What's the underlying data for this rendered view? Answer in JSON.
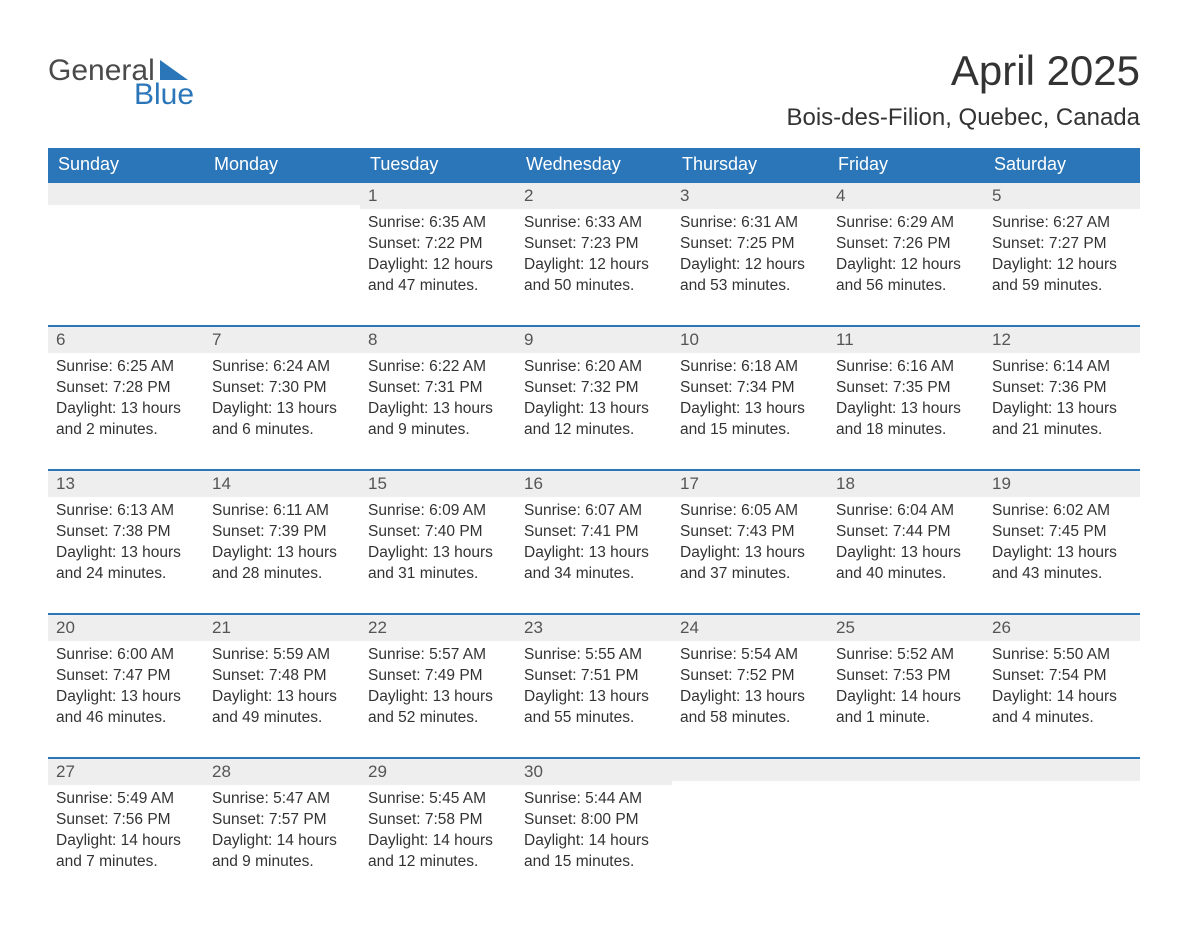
{
  "brand": {
    "text_general": "General",
    "text_blue": "Blue",
    "color_general": "#4a4a4a",
    "color_blue": "#2b76b8",
    "triangle_color": "#2b76b8"
  },
  "header": {
    "title": "April 2025",
    "subtitle": "Bois-des-Filion, Quebec, Canada"
  },
  "colors": {
    "header_bg": "#2b76b8",
    "header_text": "#ffffff",
    "daynum_bg": "#eeeeee",
    "daynum_text": "#555555",
    "body_text": "#333333",
    "week_border": "#2b76b8",
    "page_bg": "#ffffff"
  },
  "days_of_week": [
    "Sunday",
    "Monday",
    "Tuesday",
    "Wednesday",
    "Thursday",
    "Friday",
    "Saturday"
  ],
  "weeks": [
    [
      {
        "num": "",
        "sunrise": "",
        "sunset": "",
        "daylight": ""
      },
      {
        "num": "",
        "sunrise": "",
        "sunset": "",
        "daylight": ""
      },
      {
        "num": "1",
        "sunrise": "Sunrise: 6:35 AM",
        "sunset": "Sunset: 7:22 PM",
        "daylight": "Daylight: 12 hours and 47 minutes."
      },
      {
        "num": "2",
        "sunrise": "Sunrise: 6:33 AM",
        "sunset": "Sunset: 7:23 PM",
        "daylight": "Daylight: 12 hours and 50 minutes."
      },
      {
        "num": "3",
        "sunrise": "Sunrise: 6:31 AM",
        "sunset": "Sunset: 7:25 PM",
        "daylight": "Daylight: 12 hours and 53 minutes."
      },
      {
        "num": "4",
        "sunrise": "Sunrise: 6:29 AM",
        "sunset": "Sunset: 7:26 PM",
        "daylight": "Daylight: 12 hours and 56 minutes."
      },
      {
        "num": "5",
        "sunrise": "Sunrise: 6:27 AM",
        "sunset": "Sunset: 7:27 PM",
        "daylight": "Daylight: 12 hours and 59 minutes."
      }
    ],
    [
      {
        "num": "6",
        "sunrise": "Sunrise: 6:25 AM",
        "sunset": "Sunset: 7:28 PM",
        "daylight": "Daylight: 13 hours and 2 minutes."
      },
      {
        "num": "7",
        "sunrise": "Sunrise: 6:24 AM",
        "sunset": "Sunset: 7:30 PM",
        "daylight": "Daylight: 13 hours and 6 minutes."
      },
      {
        "num": "8",
        "sunrise": "Sunrise: 6:22 AM",
        "sunset": "Sunset: 7:31 PM",
        "daylight": "Daylight: 13 hours and 9 minutes."
      },
      {
        "num": "9",
        "sunrise": "Sunrise: 6:20 AM",
        "sunset": "Sunset: 7:32 PM",
        "daylight": "Daylight: 13 hours and 12 minutes."
      },
      {
        "num": "10",
        "sunrise": "Sunrise: 6:18 AM",
        "sunset": "Sunset: 7:34 PM",
        "daylight": "Daylight: 13 hours and 15 minutes."
      },
      {
        "num": "11",
        "sunrise": "Sunrise: 6:16 AM",
        "sunset": "Sunset: 7:35 PM",
        "daylight": "Daylight: 13 hours and 18 minutes."
      },
      {
        "num": "12",
        "sunrise": "Sunrise: 6:14 AM",
        "sunset": "Sunset: 7:36 PM",
        "daylight": "Daylight: 13 hours and 21 minutes."
      }
    ],
    [
      {
        "num": "13",
        "sunrise": "Sunrise: 6:13 AM",
        "sunset": "Sunset: 7:38 PM",
        "daylight": "Daylight: 13 hours and 24 minutes."
      },
      {
        "num": "14",
        "sunrise": "Sunrise: 6:11 AM",
        "sunset": "Sunset: 7:39 PM",
        "daylight": "Daylight: 13 hours and 28 minutes."
      },
      {
        "num": "15",
        "sunrise": "Sunrise: 6:09 AM",
        "sunset": "Sunset: 7:40 PM",
        "daylight": "Daylight: 13 hours and 31 minutes."
      },
      {
        "num": "16",
        "sunrise": "Sunrise: 6:07 AM",
        "sunset": "Sunset: 7:41 PM",
        "daylight": "Daylight: 13 hours and 34 minutes."
      },
      {
        "num": "17",
        "sunrise": "Sunrise: 6:05 AM",
        "sunset": "Sunset: 7:43 PM",
        "daylight": "Daylight: 13 hours and 37 minutes."
      },
      {
        "num": "18",
        "sunrise": "Sunrise: 6:04 AM",
        "sunset": "Sunset: 7:44 PM",
        "daylight": "Daylight: 13 hours and 40 minutes."
      },
      {
        "num": "19",
        "sunrise": "Sunrise: 6:02 AM",
        "sunset": "Sunset: 7:45 PM",
        "daylight": "Daylight: 13 hours and 43 minutes."
      }
    ],
    [
      {
        "num": "20",
        "sunrise": "Sunrise: 6:00 AM",
        "sunset": "Sunset: 7:47 PM",
        "daylight": "Daylight: 13 hours and 46 minutes."
      },
      {
        "num": "21",
        "sunrise": "Sunrise: 5:59 AM",
        "sunset": "Sunset: 7:48 PM",
        "daylight": "Daylight: 13 hours and 49 minutes."
      },
      {
        "num": "22",
        "sunrise": "Sunrise: 5:57 AM",
        "sunset": "Sunset: 7:49 PM",
        "daylight": "Daylight: 13 hours and 52 minutes."
      },
      {
        "num": "23",
        "sunrise": "Sunrise: 5:55 AM",
        "sunset": "Sunset: 7:51 PM",
        "daylight": "Daylight: 13 hours and 55 minutes."
      },
      {
        "num": "24",
        "sunrise": "Sunrise: 5:54 AM",
        "sunset": "Sunset: 7:52 PM",
        "daylight": "Daylight: 13 hours and 58 minutes."
      },
      {
        "num": "25",
        "sunrise": "Sunrise: 5:52 AM",
        "sunset": "Sunset: 7:53 PM",
        "daylight": "Daylight: 14 hours and 1 minute."
      },
      {
        "num": "26",
        "sunrise": "Sunrise: 5:50 AM",
        "sunset": "Sunset: 7:54 PM",
        "daylight": "Daylight: 14 hours and 4 minutes."
      }
    ],
    [
      {
        "num": "27",
        "sunrise": "Sunrise: 5:49 AM",
        "sunset": "Sunset: 7:56 PM",
        "daylight": "Daylight: 14 hours and 7 minutes."
      },
      {
        "num": "28",
        "sunrise": "Sunrise: 5:47 AM",
        "sunset": "Sunset: 7:57 PM",
        "daylight": "Daylight: 14 hours and 9 minutes."
      },
      {
        "num": "29",
        "sunrise": "Sunrise: 5:45 AM",
        "sunset": "Sunset: 7:58 PM",
        "daylight": "Daylight: 14 hours and 12 minutes."
      },
      {
        "num": "30",
        "sunrise": "Sunrise: 5:44 AM",
        "sunset": "Sunset: 8:00 PM",
        "daylight": "Daylight: 14 hours and 15 minutes."
      },
      {
        "num": "",
        "sunrise": "",
        "sunset": "",
        "daylight": ""
      },
      {
        "num": "",
        "sunrise": "",
        "sunset": "",
        "daylight": ""
      },
      {
        "num": "",
        "sunrise": "",
        "sunset": "",
        "daylight": ""
      }
    ]
  ]
}
